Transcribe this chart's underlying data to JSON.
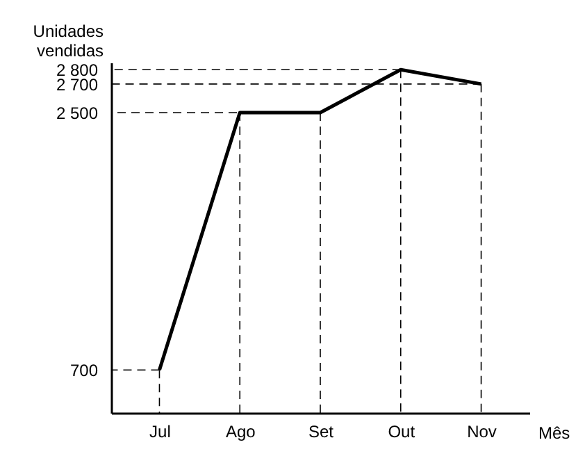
{
  "chart_data": {
    "type": "line",
    "ylabel": "Unidades\nvendidas",
    "xlabel": "Mês",
    "categories": [
      "Jul",
      "Ago",
      "Set",
      "Out",
      "Nov"
    ],
    "series": [
      {
        "color": "#000000",
        "values": [
          700,
          2500,
          2500,
          2800,
          2700
        ]
      }
    ],
    "ylim": [
      400,
      2850
    ],
    "yticks": [
      700,
      {
        "value": 2500,
        "label": "2 500"
      },
      {
        "value": 2700,
        "label": "2 700"
      },
      {
        "value": 2800,
        "label": "2 800"
      }
    ],
    "ref_lines": [
      {
        "axis": "y",
        "value": 700,
        "line_style": "dashed"
      },
      {
        "axis": "y",
        "value": 2500,
        "line_style": "dashed"
      },
      {
        "axis": "y",
        "value": 2700,
        "line_style": "dashed"
      },
      {
        "axis": "y",
        "value": 2800,
        "line_style": "dashed"
      },
      {
        "axis": "x",
        "value": "Jul",
        "line_style": "dashed"
      },
      {
        "axis": "x",
        "value": "Ago",
        "line_style": "dashed"
      },
      {
        "axis": "x",
        "value": "Set",
        "line_style": "dashed"
      },
      {
        "axis": "x",
        "value": "Out",
        "line_style": "dashed"
      },
      {
        "axis": "x",
        "value": "Nov",
        "line_style": "dashed"
      }
    ],
    "grid": false,
    "marker": "none",
    "line_style": "solid"
  }
}
